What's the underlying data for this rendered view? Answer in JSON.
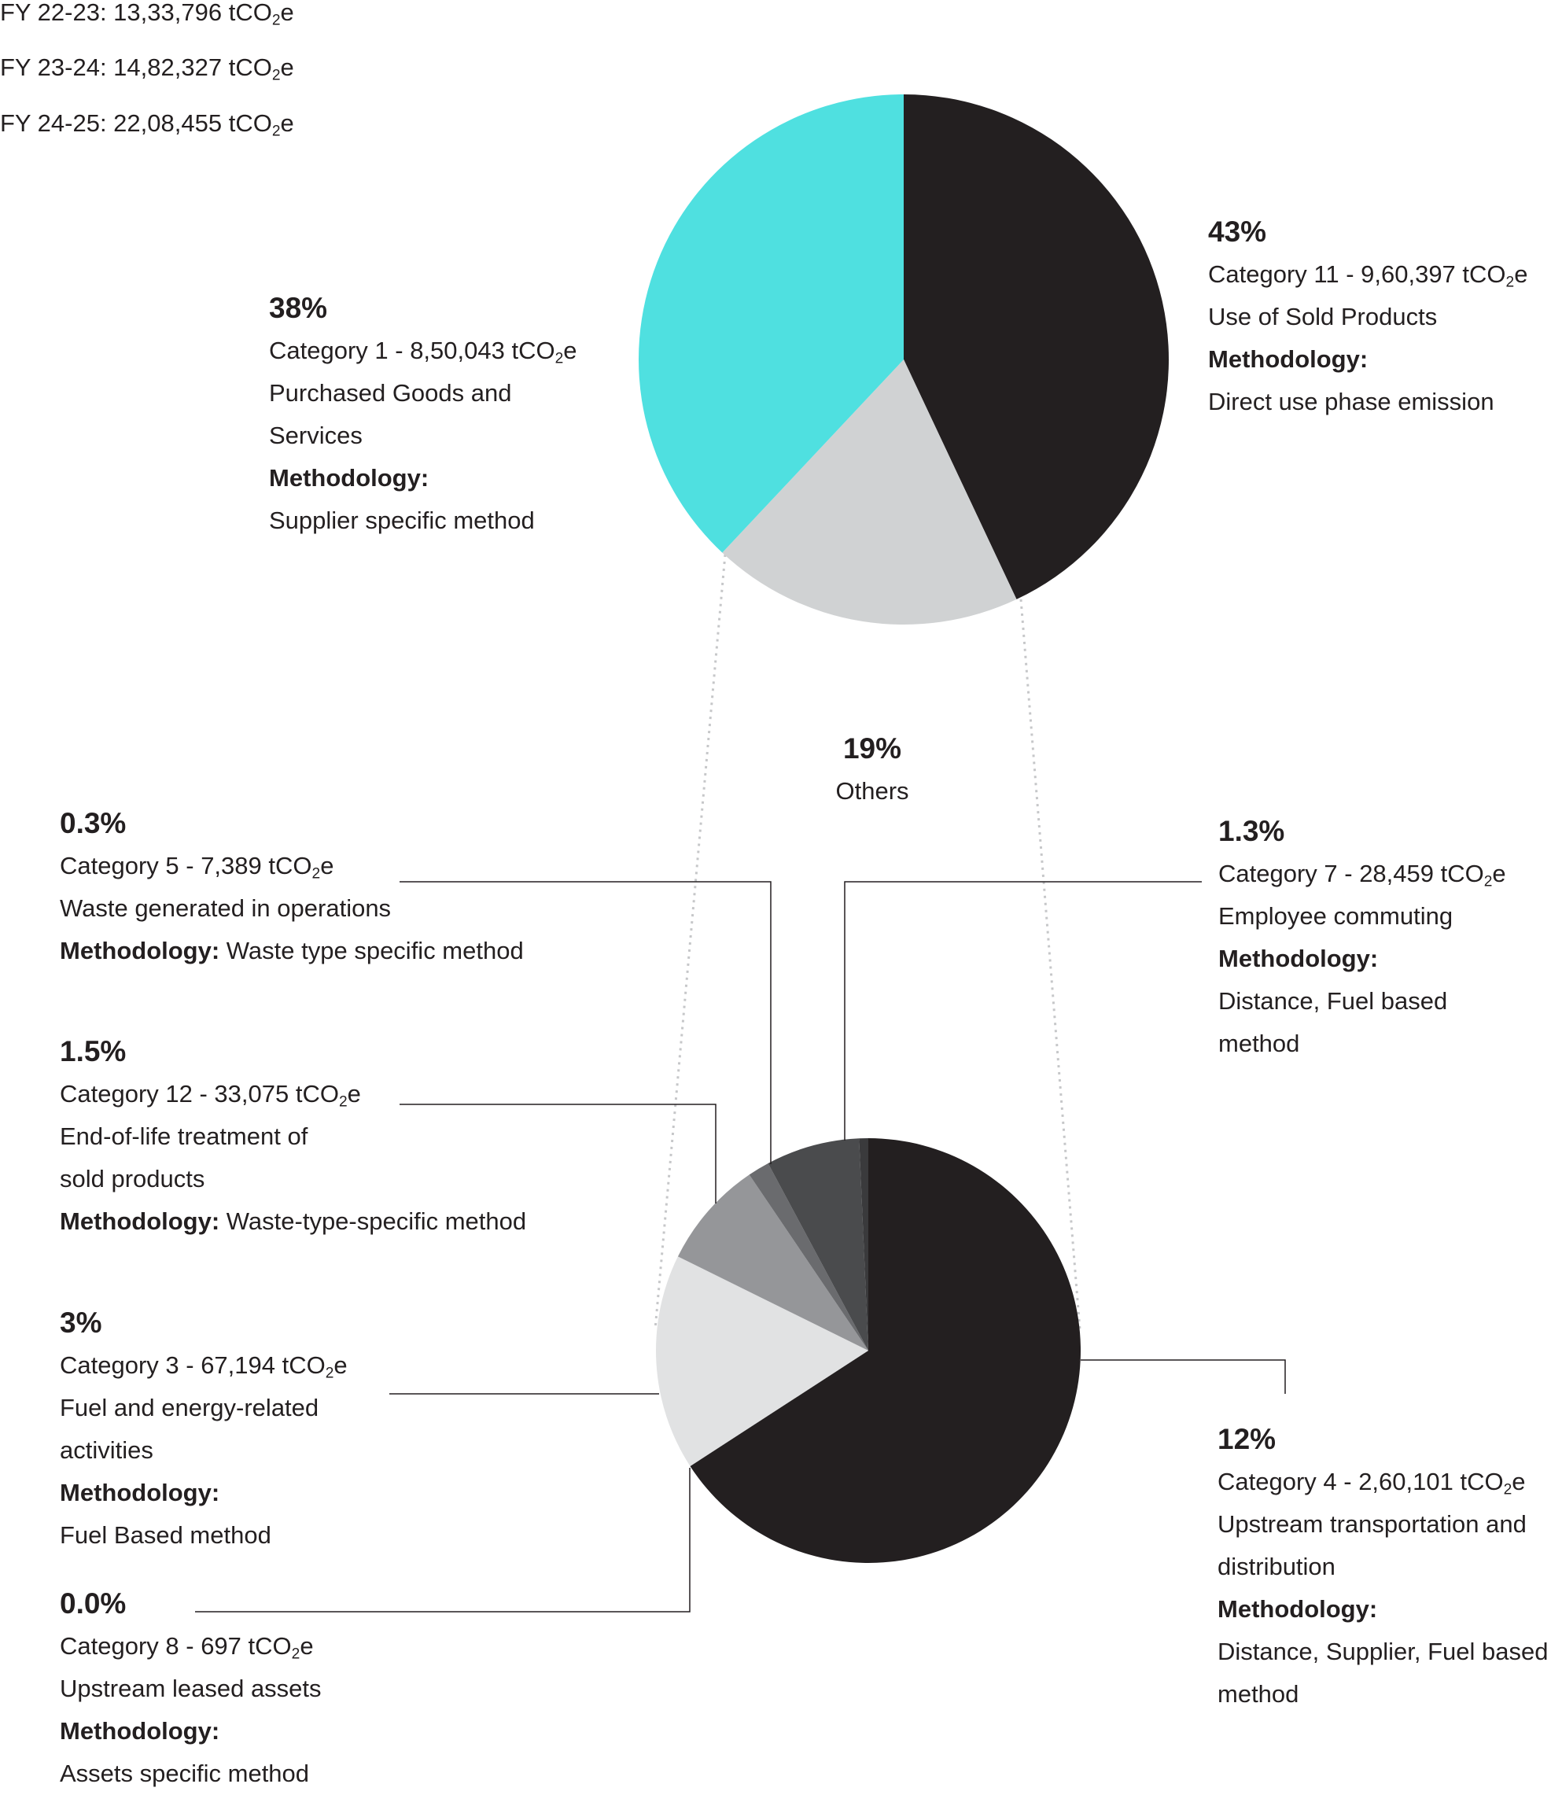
{
  "fy_totals": [
    {
      "label": "FY 22-23: 13,33,796 tCO",
      "sub": "2",
      "suffix": "e"
    },
    {
      "label": "FY 23-24: 14,82,327 tCO",
      "sub": "2",
      "suffix": "e"
    },
    {
      "label": "FY 24-25: 22,08,455 tCO",
      "sub": "2",
      "suffix": "e"
    }
  ],
  "chart_data": [
    {
      "type": "pie",
      "categories": [
        "Category 11 - Use of Sold Products",
        "Others",
        "Category 1 - Purchased Goods and Services"
      ],
      "values": [
        43,
        19,
        38
      ],
      "unit": "%",
      "colors": [
        "#231f20",
        "#d0d2d3",
        "#4fe0e0"
      ]
    },
    {
      "type": "pie",
      "categories": [
        "Category 4",
        "Category 3",
        "Category 12",
        "Category 5",
        "Category 7",
        "Category 8"
      ],
      "values": [
        12,
        3,
        1.5,
        0.3,
        1.3,
        0.0
      ],
      "unit": "%",
      "colors": [
        "#231f20",
        "#e1e2e3",
        "#959699",
        "#6a6b6e",
        "#4a4b4d",
        "#3a3a3c"
      ]
    }
  ],
  "labels": {
    "cat11": {
      "pct": "43%",
      "lines": [
        {
          "pre": "Category 11 - 9,60,397 tCO",
          "sub": "2",
          "post": "e"
        },
        {
          "text": "Use of Sold Products"
        }
      ],
      "meth_label": "Methodology:",
      "meth_lines": [
        "Direct use phase emission"
      ]
    },
    "cat1": {
      "pct": "38%",
      "lines": [
        {
          "pre": "Category 1 - 8,50,043 tCO",
          "sub": "2",
          "post": "e"
        },
        {
          "text": "Purchased Goods and"
        },
        {
          "text": "Services"
        }
      ],
      "meth_label": "Methodology:",
      "meth_lines": [
        "Supplier specific method"
      ]
    },
    "others": {
      "pct": "19%",
      "text": "Others"
    },
    "cat5": {
      "pct": "0.3%",
      "lines": [
        {
          "pre": "Category 5 - 7,389  tCO",
          "sub": "2",
          "post": "e"
        },
        {
          "text": "Waste generated in operations"
        }
      ],
      "meth_label": "Methodology:",
      "meth_inline": " Waste type specific method"
    },
    "cat12": {
      "pct": "1.5%",
      "lines": [
        {
          "pre": "Category 12 - 33,075  tCO",
          "sub": "2",
          "post": "e"
        },
        {
          "text": "End-of-life treatment of"
        },
        {
          "text": "sold products"
        }
      ],
      "meth_label": "Methodology:",
      "meth_inline": " Waste-type-specific method"
    },
    "cat3": {
      "pct": "3%",
      "lines": [
        {
          "pre": "Category 3 - 67,194 tCO",
          "sub": "2",
          "post": "e"
        },
        {
          "text": "Fuel and energy-related"
        },
        {
          "text": "activities"
        }
      ],
      "meth_label": "Methodology:",
      "meth_lines": [
        "Fuel Based method"
      ]
    },
    "cat8": {
      "pct": "0.0%",
      "lines": [
        {
          "pre": "Category 8 - 697 tCO",
          "sub": "2",
          "post": "e"
        },
        {
          "text": "Upstream leased assets"
        }
      ],
      "meth_label": "Methodology:",
      "meth_lines": [
        "Assets specific method"
      ]
    },
    "cat7": {
      "pct": "1.3%",
      "lines": [
        {
          "pre": "Category 7 - 28,459 tCO",
          "sub": "2",
          "post": "e"
        },
        {
          "text": "Employee commuting"
        }
      ],
      "meth_label": "Methodology:",
      "meth_lines": [
        "Distance, Fuel based",
        "method"
      ]
    },
    "cat4": {
      "pct": "12%",
      "lines": [
        {
          "pre": "Category 4 - 2,60,101  tCO",
          "sub": "2",
          "post": "e"
        },
        {
          "text": "Upstream transportation and"
        },
        {
          "text": "distribution"
        }
      ],
      "meth_label": "Methodology:",
      "meth_lines": [
        "Distance, Supplier, Fuel based",
        "method"
      ]
    }
  }
}
